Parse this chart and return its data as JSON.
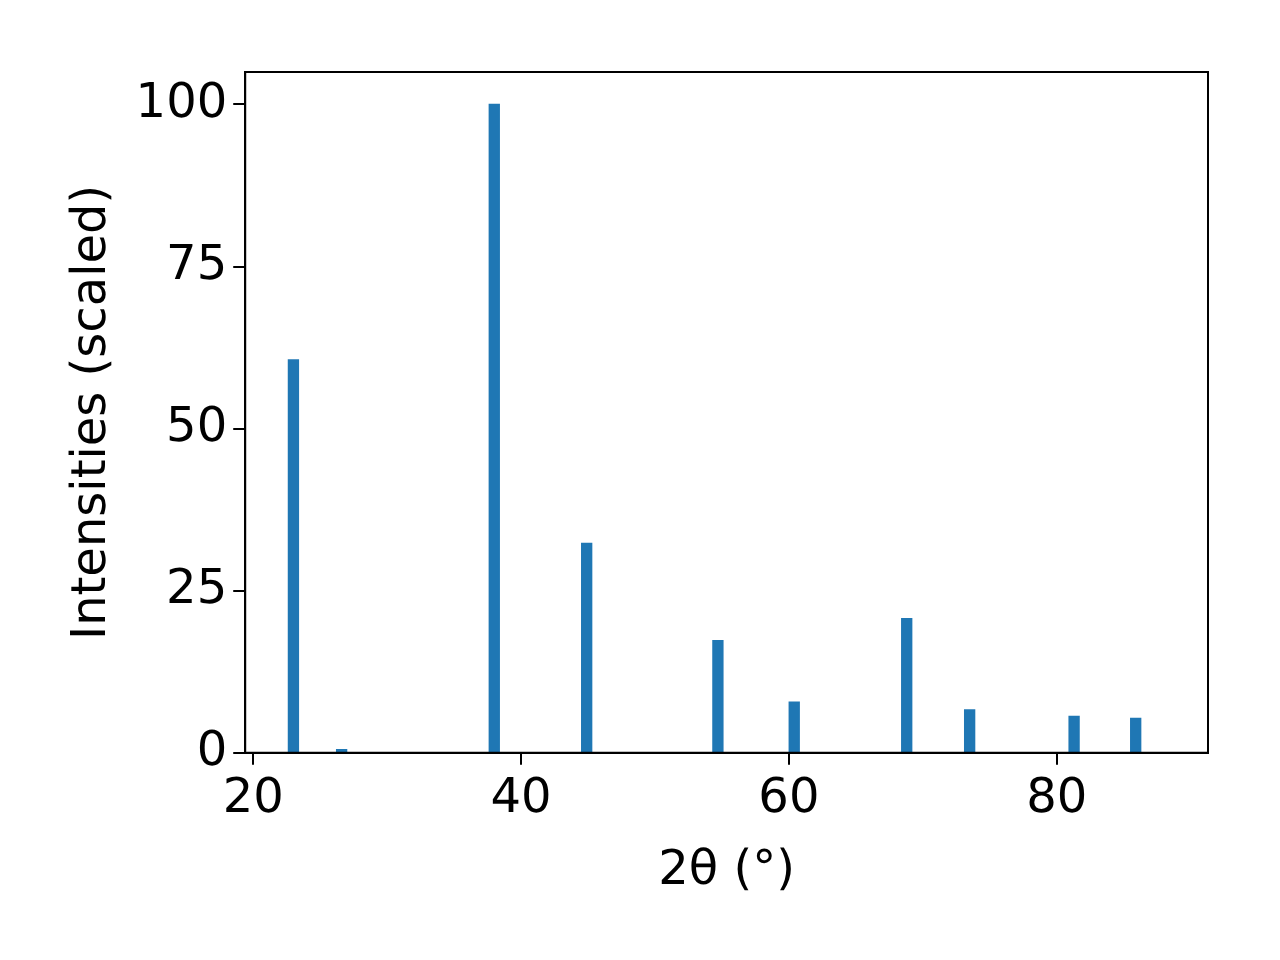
{
  "chart_data": {
    "type": "bar",
    "xlabel": "2θ (°)",
    "ylabel": "Intensities (scaled)",
    "x": [
      23.0,
      26.6,
      38.0,
      44.9,
      54.7,
      60.4,
      68.8,
      73.5,
      81.3,
      85.9
    ],
    "values": [
      60.6,
      0.5,
      100,
      32.3,
      17.3,
      7.8,
      20.7,
      6.6,
      5.6,
      5.3
    ],
    "color": "#1f77b4",
    "xlim": [
      19.4,
      91.3
    ],
    "xticks": [
      20,
      40,
      60,
      80
    ],
    "ylim": [
      0,
      105
    ],
    "yticks": [
      0,
      25,
      50,
      75,
      100
    ],
    "grid": false,
    "legend": false
  }
}
